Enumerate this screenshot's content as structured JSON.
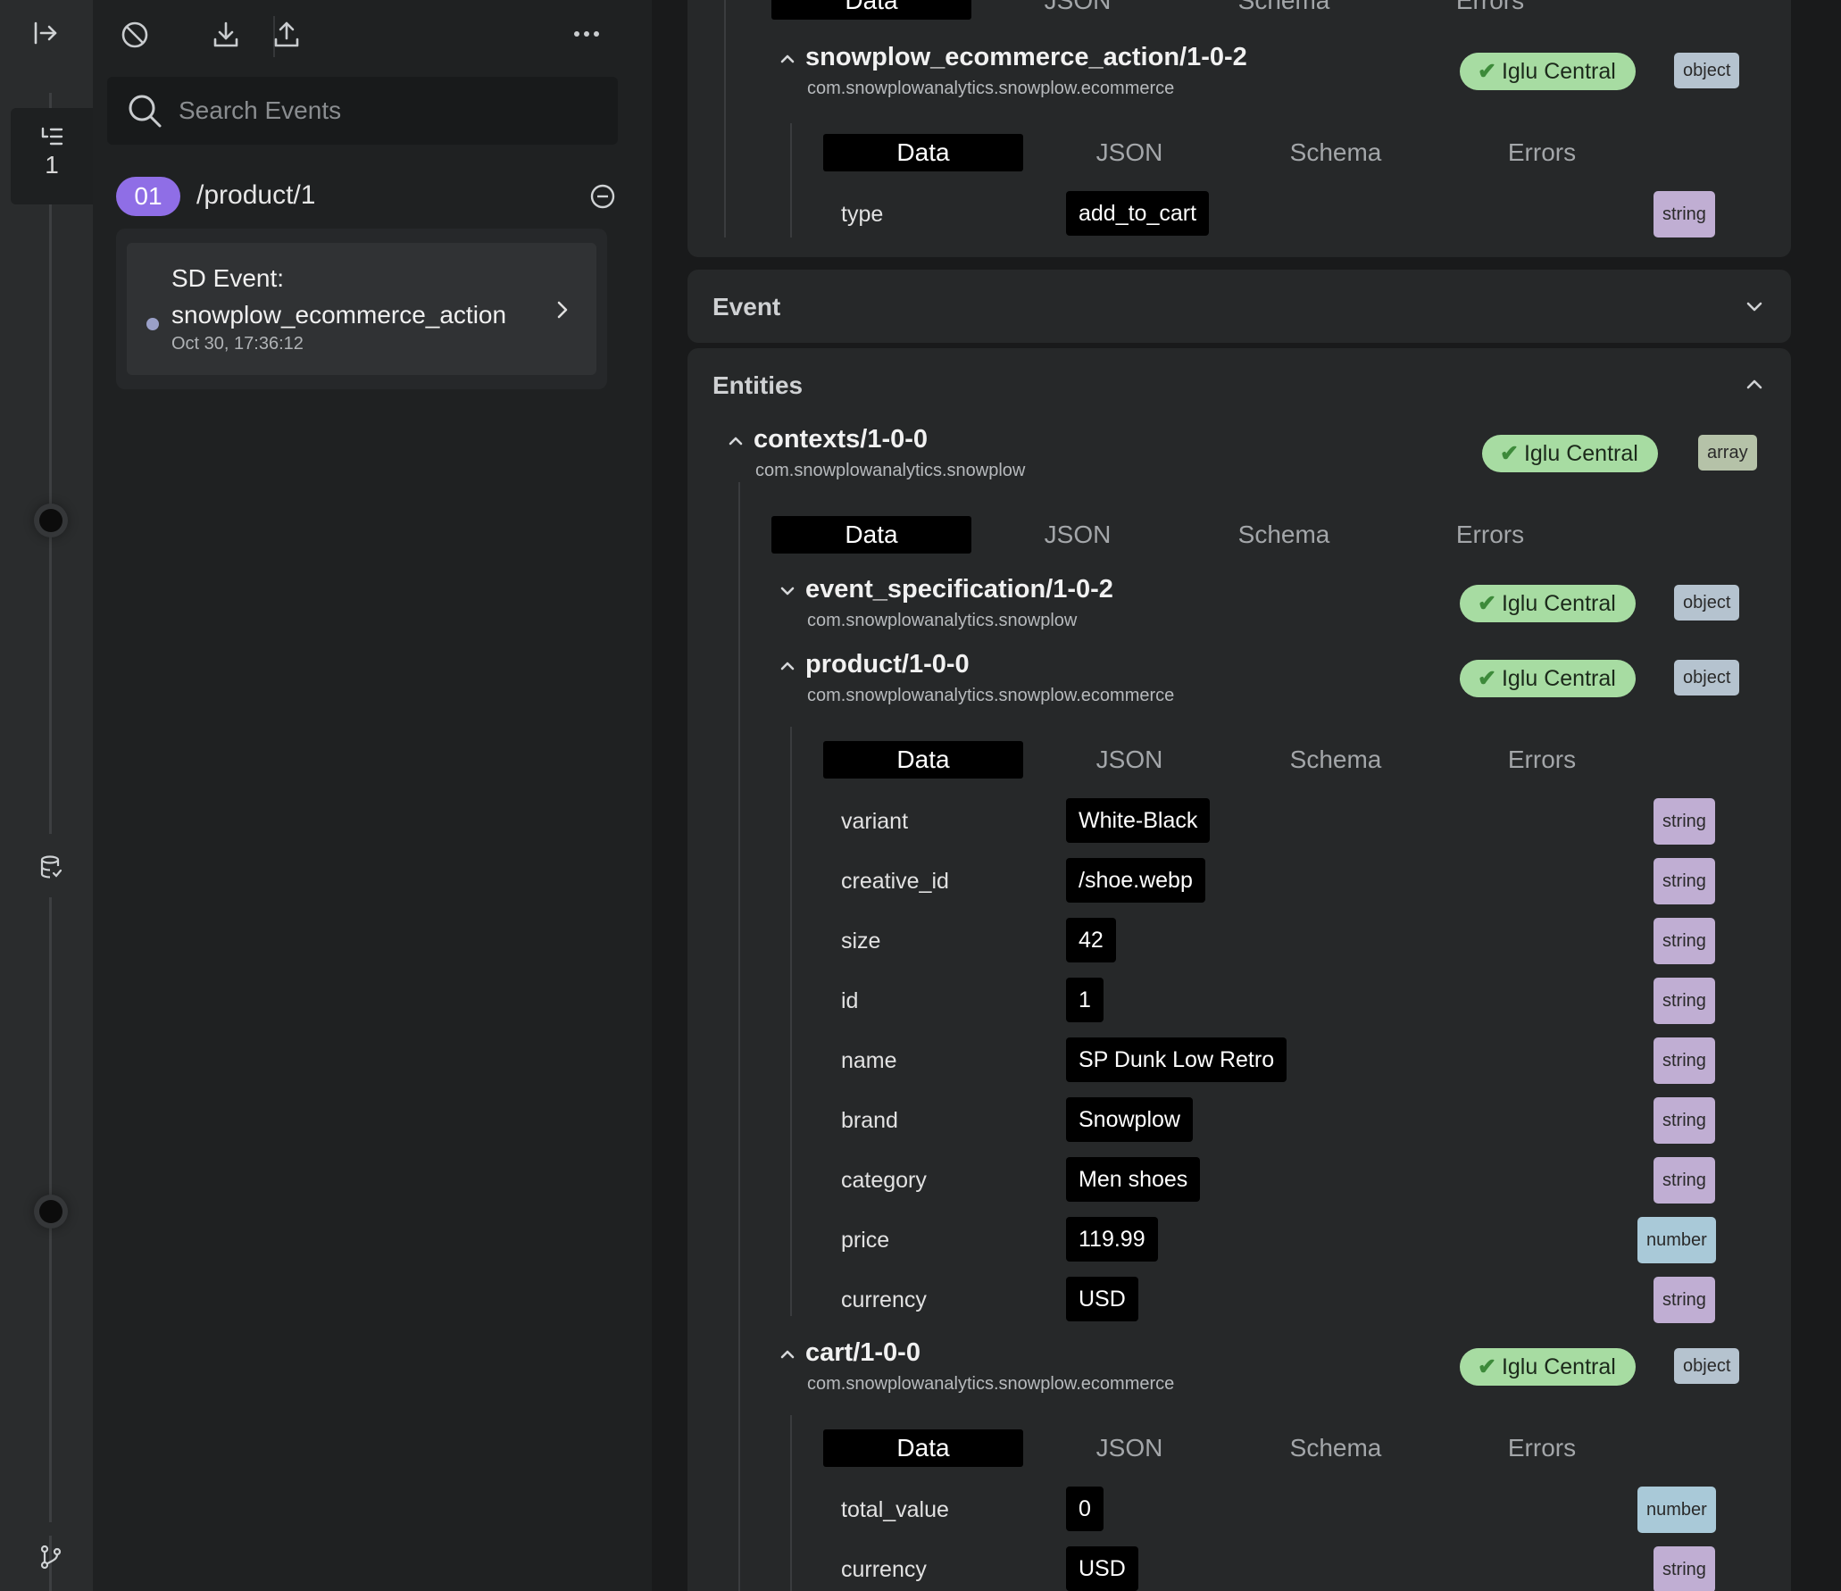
{
  "search": {
    "placeholder": "Search Events"
  },
  "rail": {
    "event_count": "1"
  },
  "page": {
    "index": "01",
    "path": "/product/1"
  },
  "event": {
    "title_line1": "SD Event:",
    "title_line2": "snowplow_ecommerce_action",
    "time": "Oct 30, 17:36:12"
  },
  "tabs": [
    "Data",
    "JSON",
    "Schema",
    "Errors"
  ],
  "sections": {
    "event": "Event",
    "entities": "Entities"
  },
  "badge": "Iglu Central",
  "top_schema": {
    "name": "snowplow_ecommerce_action/1-0-2",
    "vendor": "com.snowplowanalytics.snowplow.ecommerce",
    "type": "object",
    "rows": [
      {
        "key": "type",
        "value": "add_to_cart",
        "type": "string"
      }
    ]
  },
  "contexts": {
    "name": "contexts/1-0-0",
    "vendor": "com.snowplowanalytics.snowplow",
    "type": "array"
  },
  "event_specification": {
    "name": "event_specification/1-0-2",
    "vendor": "com.snowplowanalytics.snowplow",
    "type": "object"
  },
  "product": {
    "name": "product/1-0-0",
    "vendor": "com.snowplowanalytics.snowplow.ecommerce",
    "type": "object",
    "rows": [
      {
        "key": "variant",
        "value": "White-Black",
        "type": "string"
      },
      {
        "key": "creative_id",
        "value": "/shoe.webp",
        "type": "string"
      },
      {
        "key": "size",
        "value": "42",
        "type": "string"
      },
      {
        "key": "id",
        "value": "1",
        "type": "string"
      },
      {
        "key": "name",
        "value": "SP Dunk Low Retro",
        "type": "string"
      },
      {
        "key": "brand",
        "value": "Snowplow",
        "type": "string"
      },
      {
        "key": "category",
        "value": "Men shoes",
        "type": "string"
      },
      {
        "key": "price",
        "value": "119.99",
        "type": "number"
      },
      {
        "key": "currency",
        "value": "USD",
        "type": "string"
      }
    ]
  },
  "cart": {
    "name": "cart/1-0-0",
    "vendor": "com.snowplowanalytics.snowplow.ecommerce",
    "type": "object",
    "rows": [
      {
        "key": "total_value",
        "value": "0",
        "type": "number"
      },
      {
        "key": "currency",
        "value": "USD",
        "type": "string"
      }
    ]
  }
}
